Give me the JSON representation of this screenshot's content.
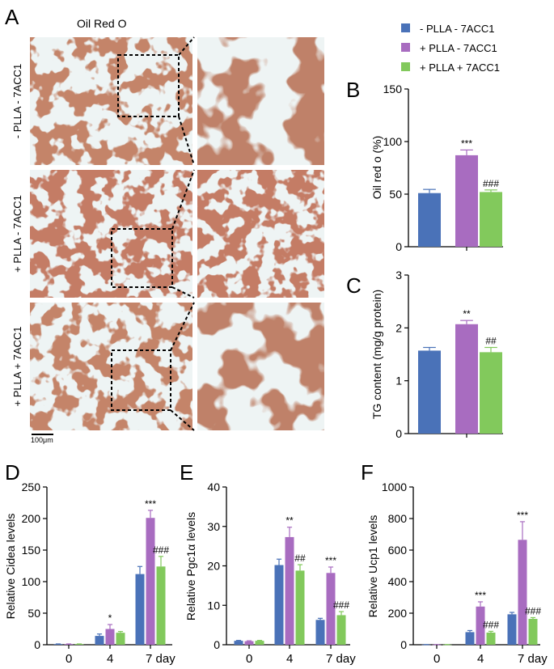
{
  "panel_labels": [
    "A",
    "B",
    "C",
    "D",
    "E",
    "F"
  ],
  "stain_title": "Oil Red O",
  "row_labels": [
    "- PLLA - 7ACC1",
    "+ PLLA - 7ACC1",
    "+ PLLA + 7ACC1"
  ],
  "scale_bar": "100μm",
  "legend": [
    {
      "label": "- PLLA - 7ACC1",
      "color": "#4a72b8"
    },
    {
      "label": "+ PLLA - 7ACC1",
      "color": "#a86cc0"
    },
    {
      "label": "+ PLLA + 7ACC1",
      "color": "#82c95c"
    }
  ],
  "colors": {
    "blue": "#4a72b8",
    "purple": "#a86cc0",
    "green": "#82c95c",
    "stain": "#8c3a22",
    "background": "#eef4f4"
  },
  "chart_data": [
    {
      "id": "B",
      "type": "bar",
      "ylabel": "Oil red o (%)",
      "ylim": [
        0,
        150
      ],
      "yticks": [
        0,
        50,
        100,
        150
      ],
      "values": [
        51,
        87,
        52
      ],
      "errors": [
        3.5,
        5,
        2
      ],
      "annotations": [
        "",
        "***",
        "###"
      ]
    },
    {
      "id": "C",
      "type": "bar",
      "ylabel": "TG content (mg/g protein)",
      "ylim": [
        0,
        3
      ],
      "yticks": [
        0,
        1,
        2,
        3
      ],
      "values": [
        1.57,
        2.07,
        1.54
      ],
      "errors": [
        0.06,
        0.07,
        0.09
      ],
      "annotations": [
        "",
        "**",
        "##"
      ]
    },
    {
      "id": "D",
      "type": "bar",
      "ylabel": "Relative Cidea levels",
      "ylim": [
        0,
        250
      ],
      "yticks": [
        0,
        50,
        100,
        150,
        200,
        250
      ],
      "categories": [
        "0",
        "4",
        "7 day"
      ],
      "series": [
        {
          "values": [
            1,
            14,
            112
          ],
          "errors": [
            0.3,
            3,
            12
          ],
          "annotations": [
            "",
            "",
            ""
          ]
        },
        {
          "values": [
            1,
            25,
            201
          ],
          "errors": [
            0.3,
            7,
            12
          ],
          "annotations": [
            "",
            "*",
            "***"
          ]
        },
        {
          "values": [
            1,
            19,
            124
          ],
          "errors": [
            0.3,
            2,
            16
          ],
          "annotations": [
            "",
            "",
            "###"
          ]
        }
      ]
    },
    {
      "id": "E",
      "type": "bar",
      "ylabel": "Relative Pgc1α levels",
      "ylim": [
        0,
        40
      ],
      "yticks": [
        0,
        10,
        20,
        30,
        40
      ],
      "categories": [
        "0",
        "4",
        "7 day"
      ],
      "series": [
        {
          "values": [
            1,
            20.2,
            6.3
          ],
          "errors": [
            0.1,
            1.5,
            0.4
          ],
          "annotations": [
            "",
            "",
            ""
          ]
        },
        {
          "values": [
            0.9,
            27.3,
            18.2
          ],
          "errors": [
            0.1,
            2.5,
            1.5
          ],
          "annotations": [
            "",
            "**",
            "***"
          ]
        },
        {
          "values": [
            1,
            18.8,
            7.5
          ],
          "errors": [
            0.1,
            1.5,
            0.9
          ],
          "annotations": [
            "",
            "##",
            "###"
          ]
        }
      ]
    },
    {
      "id": "F",
      "type": "bar",
      "ylabel": "Relative Ucp1 levels",
      "ylim": [
        0,
        1000
      ],
      "yticks": [
        0,
        200,
        400,
        600,
        800,
        1000
      ],
      "categories": [
        "0",
        "4",
        "7 day"
      ],
      "series": [
        {
          "values": [
            1,
            80,
            193
          ],
          "errors": [
            0.3,
            10,
            12
          ],
          "annotations": [
            "",
            "",
            ""
          ]
        },
        {
          "values": [
            1,
            242,
            665
          ],
          "errors": [
            0.3,
            30,
            115
          ],
          "annotations": [
            "",
            "***",
            "***"
          ]
        },
        {
          "values": [
            1,
            77,
            164
          ],
          "errors": [
            0.3,
            8,
            8
          ],
          "annotations": [
            "",
            "###",
            "###"
          ]
        }
      ]
    }
  ]
}
